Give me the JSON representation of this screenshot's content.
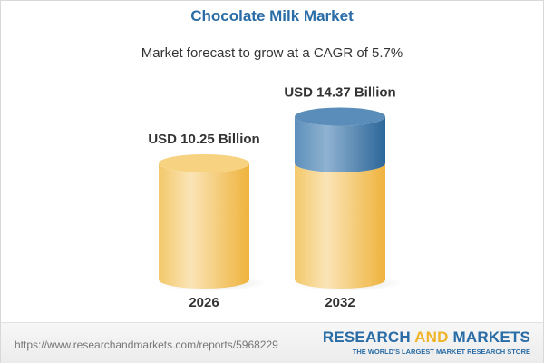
{
  "title": "Chocolate Milk Market",
  "subtitle": "Market forecast to grow at a CAGR of 5.7%",
  "chart_data": {
    "type": "bar",
    "style": "3d-cylinder",
    "categories": [
      "2026",
      "2032"
    ],
    "values": [
      10.25,
      14.37
    ],
    "data_labels": [
      "USD 10.25 Billion",
      "USD 14.37 Billion"
    ],
    "unit": "USD Billion",
    "colors": {
      "base": "#f2c25a",
      "growth": "#3f7bae"
    }
  },
  "footer": {
    "url": "https://www.researchandmarkets.com/reports/5968229",
    "logo_part1": "RESEARCH ",
    "logo_part2": "AND",
    "logo_part3": " MARKETS",
    "tagline": "THE WORLD'S LARGEST MARKET RESEARCH STORE"
  }
}
